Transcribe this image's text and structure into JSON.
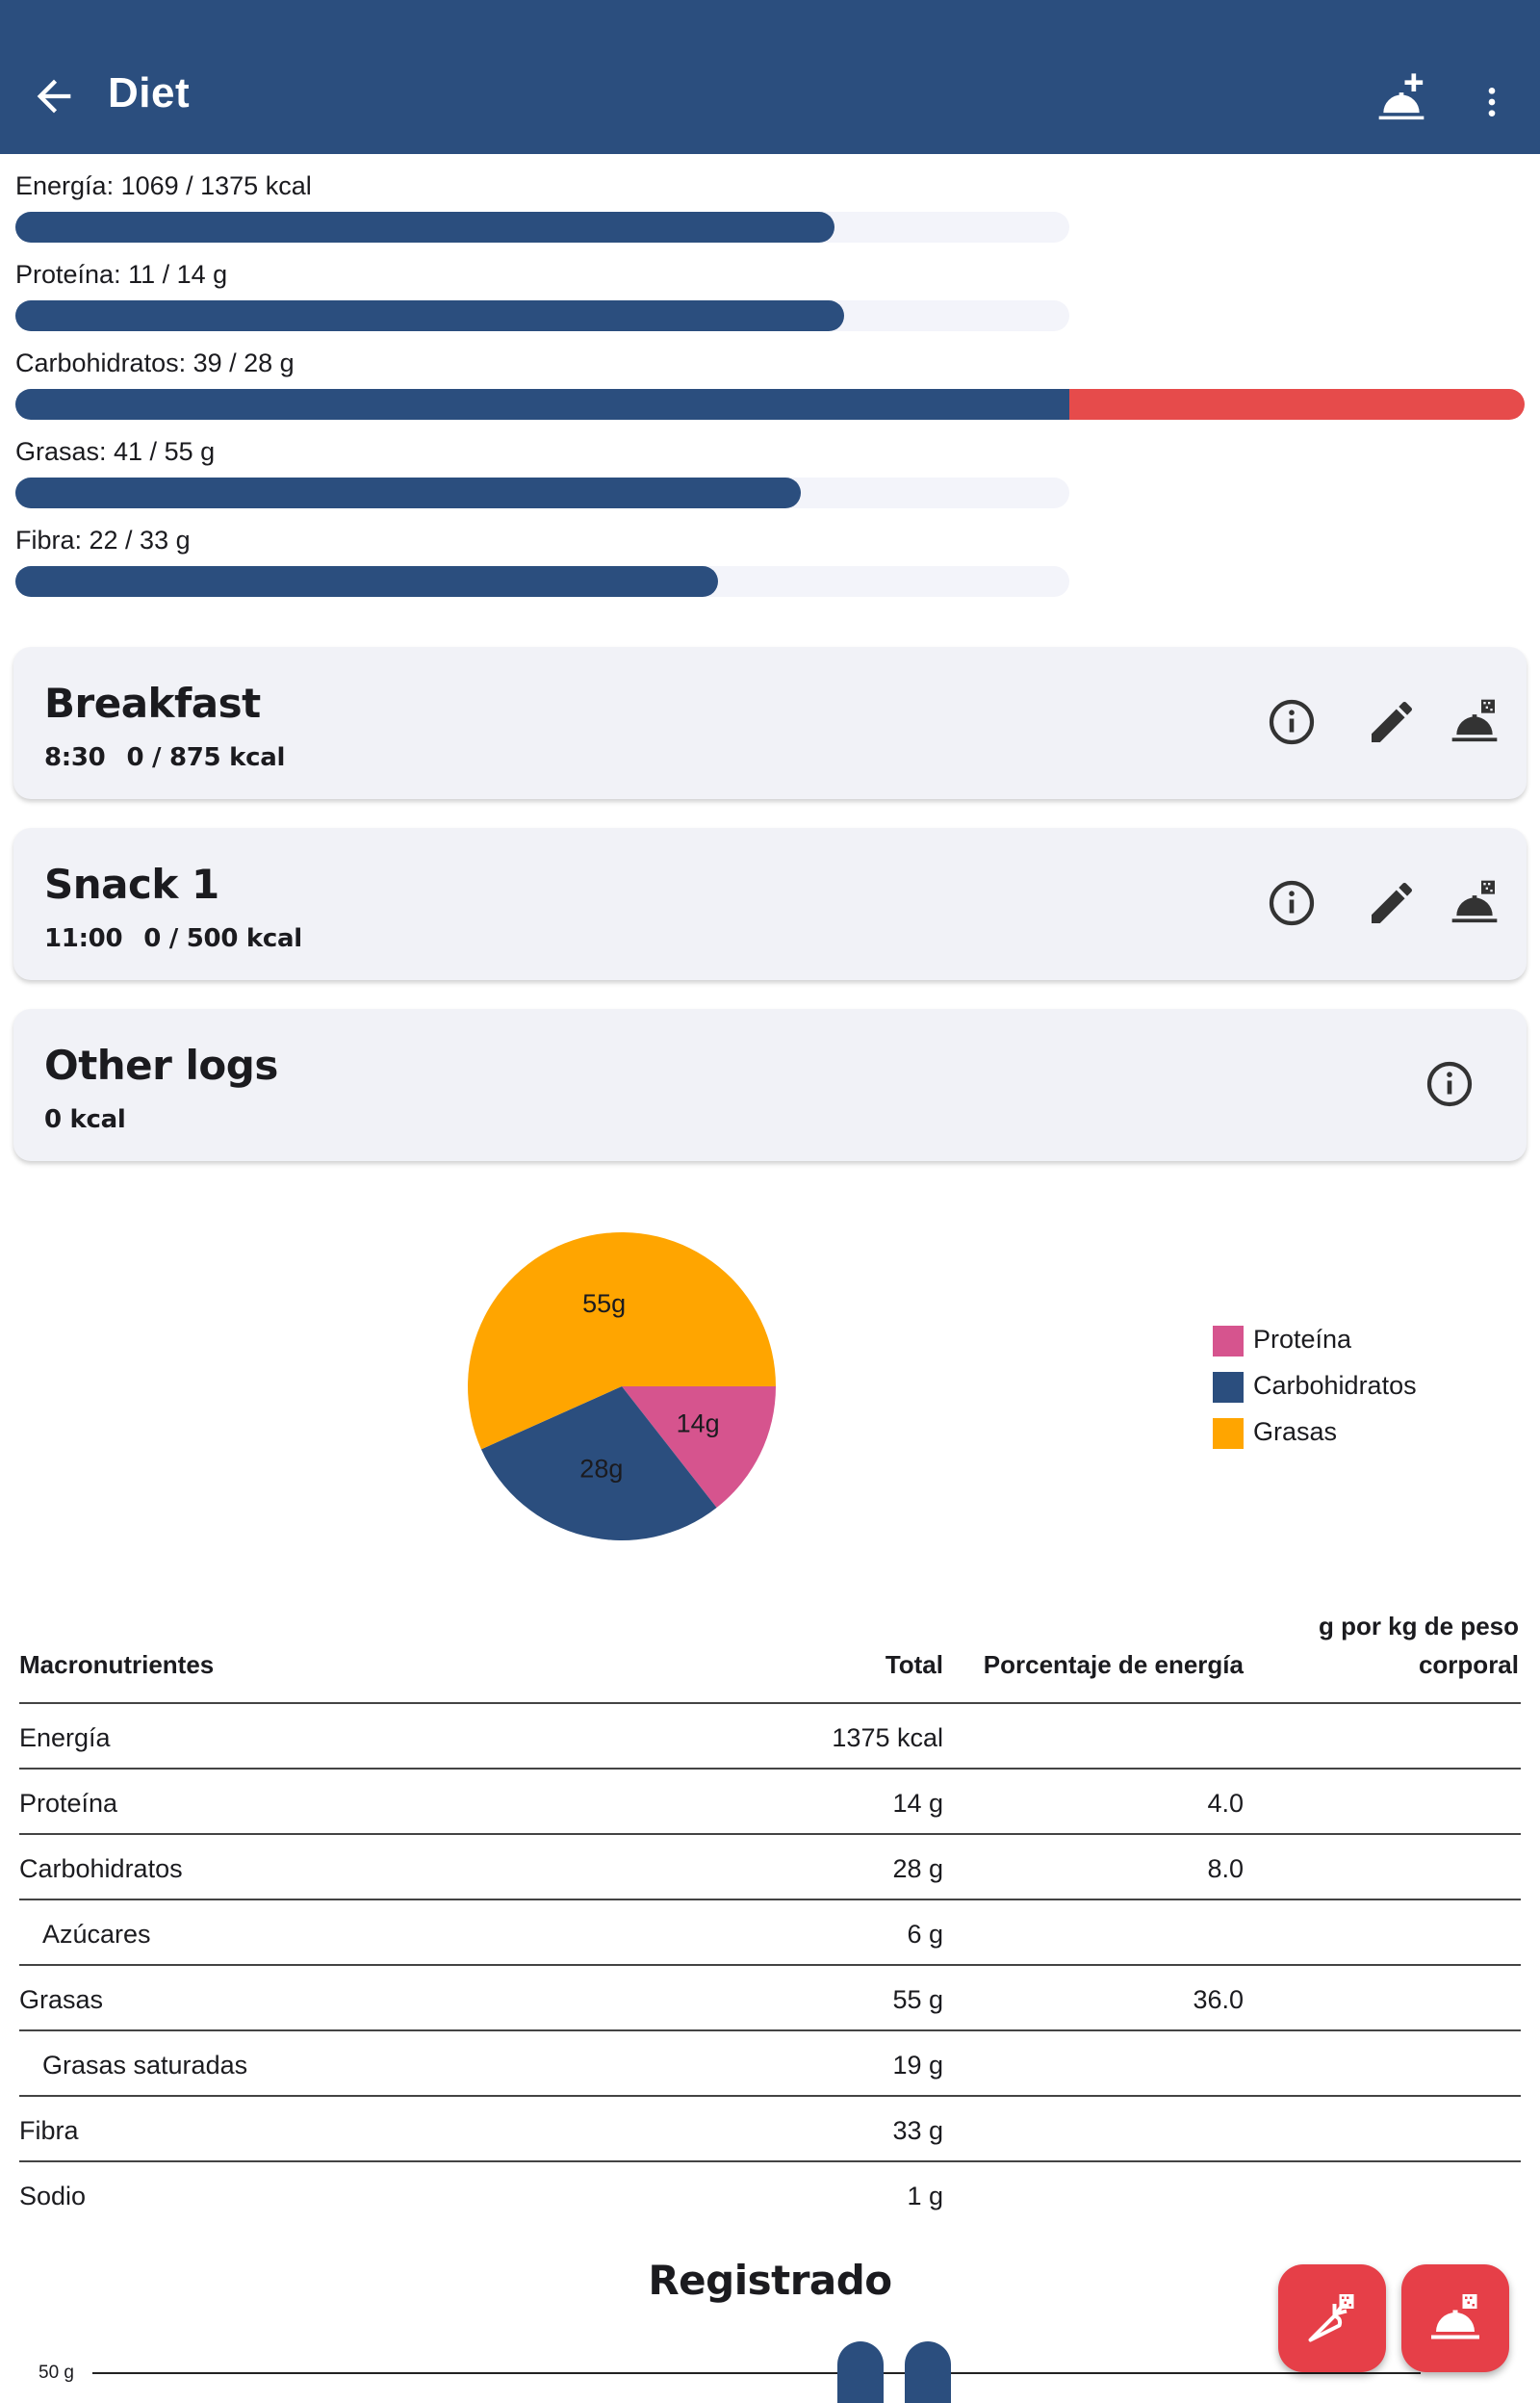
{
  "appbar": {
    "title": "Diet",
    "back_icon": "arrow-back-icon",
    "add_icon": "add-meal-icon",
    "more_icon": "more-vert-icon"
  },
  "goals": [
    {
      "label": "Energía: 1069 / 1375 kcal",
      "progress": 0.777
    },
    {
      "label": "Proteína: 11 / 14 g",
      "progress": 0.786
    },
    {
      "label": "Carbohidratos: 39 / 28 g",
      "progress": 1.393
    },
    {
      "label": "Grasas: 41 / 55 g",
      "progress": 0.745
    },
    {
      "label": "Fibra: 22 / 33 g",
      "progress": 0.667
    }
  ],
  "meals": [
    {
      "name": "Breakfast",
      "time": "8:30",
      "kcal": "0 / 875 kcal"
    },
    {
      "name": "Snack 1",
      "time": "11:00",
      "kcal": "0 / 500 kcal"
    }
  ],
  "other_logs": {
    "name": "Other logs",
    "kcal": "0 kcal"
  },
  "chart_data": {
    "type": "pie",
    "slices": [
      {
        "name": "Proteína",
        "value": 14,
        "label": "14g",
        "color": "#d6548e"
      },
      {
        "name": "Carbohidratos",
        "value": 28,
        "label": "28g",
        "color": "#2b4e7e"
      },
      {
        "name": "Grasas",
        "value": 55,
        "label": "55g",
        "color": "#ffa500"
      }
    ],
    "legend_position": "right"
  },
  "table": {
    "headers": [
      "Macronutrientes",
      "Total",
      "Porcentaje de energía",
      "g por kg de peso",
      "corporal"
    ],
    "rows": [
      {
        "name": "Energía",
        "total": "1375 kcal",
        "pct": "",
        "gkg": ""
      },
      {
        "name": "Proteína",
        "total": "14 g",
        "pct": "4.0",
        "gkg": ""
      },
      {
        "name": "Carbohidratos",
        "total": "28 g",
        "pct": "8.0",
        "gkg": ""
      },
      {
        "name": "Azúcares",
        "total": "6 g",
        "pct": "",
        "gkg": "",
        "indent": true
      },
      {
        "name": "Grasas",
        "total": "55 g",
        "pct": "36.0",
        "gkg": ""
      },
      {
        "name": "Grasas saturadas",
        "total": "19 g",
        "pct": "",
        "gkg": "",
        "indent": true
      },
      {
        "name": "Fibra",
        "total": "33 g",
        "pct": "",
        "gkg": ""
      },
      {
        "name": "Sodio",
        "total": "1 g",
        "pct": "",
        "gkg": ""
      }
    ]
  },
  "logged": {
    "title": "Registrado",
    "axis_label": "50 g"
  },
  "colors": {
    "primary": "#2b4e7e",
    "over": "#e64b4b",
    "fab": "#e63f48",
    "card": "#f1f2f7"
  }
}
